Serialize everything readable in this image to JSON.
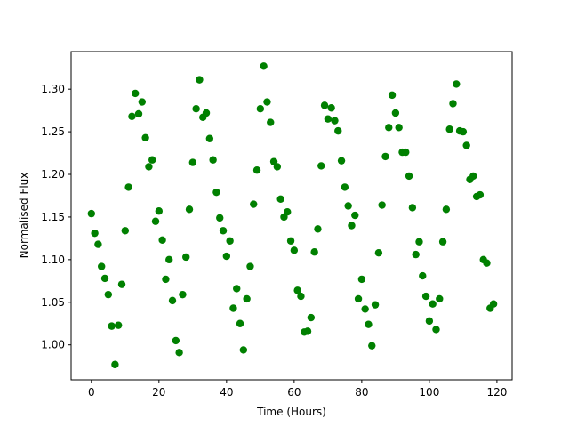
{
  "chart_data": {
    "type": "scatter",
    "xlabel": "Time (Hours)",
    "ylabel": "Normalised Flux",
    "color": "#008000",
    "grid": false,
    "x": [
      0,
      1,
      2,
      3,
      4,
      5,
      6,
      7,
      8,
      9,
      10,
      11,
      12,
      13,
      14,
      15,
      16,
      17,
      18,
      19,
      20,
      21,
      22,
      23,
      24,
      25,
      26,
      27,
      28,
      29,
      30,
      31,
      32,
      33,
      34,
      35,
      36,
      37,
      38,
      39,
      40,
      41,
      42,
      43,
      44,
      45,
      46,
      47,
      48,
      49,
      50,
      51,
      52,
      53,
      54,
      55,
      56,
      57,
      58,
      59,
      60,
      61,
      62,
      63,
      64,
      65,
      66,
      67,
      68,
      69,
      70,
      71,
      72,
      73,
      74,
      75,
      76,
      77,
      78,
      79,
      80,
      81,
      82,
      83,
      84,
      85,
      86,
      87,
      88,
      89,
      90,
      91,
      92,
      93,
      94,
      95,
      96,
      97,
      98,
      99,
      100,
      101,
      102,
      103,
      104,
      105,
      106,
      107,
      108,
      109,
      110,
      111,
      112,
      113,
      114,
      115,
      116,
      117,
      118,
      119
    ],
    "values": [
      1.154,
      1.131,
      1.118,
      1.092,
      1.078,
      1.059,
      1.022,
      0.977,
      1.023,
      1.071,
      1.134,
      1.185,
      1.268,
      1.295,
      1.271,
      1.285,
      1.243,
      1.209,
      1.217,
      1.145,
      1.157,
      1.123,
      1.077,
      1.1,
      1.052,
      1.005,
      0.991,
      1.059,
      1.103,
      1.159,
      1.214,
      1.277,
      1.311,
      1.267,
      1.272,
      1.242,
      1.217,
      1.179,
      1.149,
      1.134,
      1.104,
      1.122,
      1.043,
      1.066,
      1.025,
      0.994,
      1.054,
      1.092,
      1.165,
      1.205,
      1.277,
      1.327,
      1.285,
      1.261,
      1.215,
      1.209,
      1.171,
      1.15,
      1.156,
      1.122,
      1.111,
      1.064,
      1.057,
      1.015,
      1.016,
      1.032,
      1.109,
      1.136,
      1.21,
      1.281,
      1.265,
      1.278,
      1.263,
      1.251,
      1.216,
      1.185,
      1.163,
      1.14,
      1.152,
      1.054,
      1.077,
      1.042,
      1.024,
      0.999,
      1.047,
      1.108,
      1.164,
      1.221,
      1.255,
      1.293,
      1.272,
      1.255,
      1.226,
      1.226,
      1.198,
      1.161,
      1.106,
      1.121,
      1.081,
      1.057,
      1.028,
      1.048,
      1.018,
      1.054,
      1.121,
      1.159,
      1.253,
      1.283,
      1.306,
      1.251,
      1.25,
      1.234,
      1.194,
      1.198,
      1.174,
      1.176,
      1.1,
      1.096,
      1.043,
      1.048
    ],
    "xlim": [
      -6,
      124.5
    ],
    "ylim": [
      0.959,
      1.344
    ],
    "xticks": [
      0,
      20,
      40,
      60,
      80,
      100,
      120
    ],
    "yticks": [
      {
        "value": 1.0,
        "label": "1.00"
      },
      1.05,
      {
        "value": 1.1,
        "label": "1.10"
      },
      1.15,
      {
        "value": 1.2,
        "label": "1.20"
      },
      1.25,
      {
        "value": 1.3,
        "label": "1.30"
      }
    ]
  }
}
